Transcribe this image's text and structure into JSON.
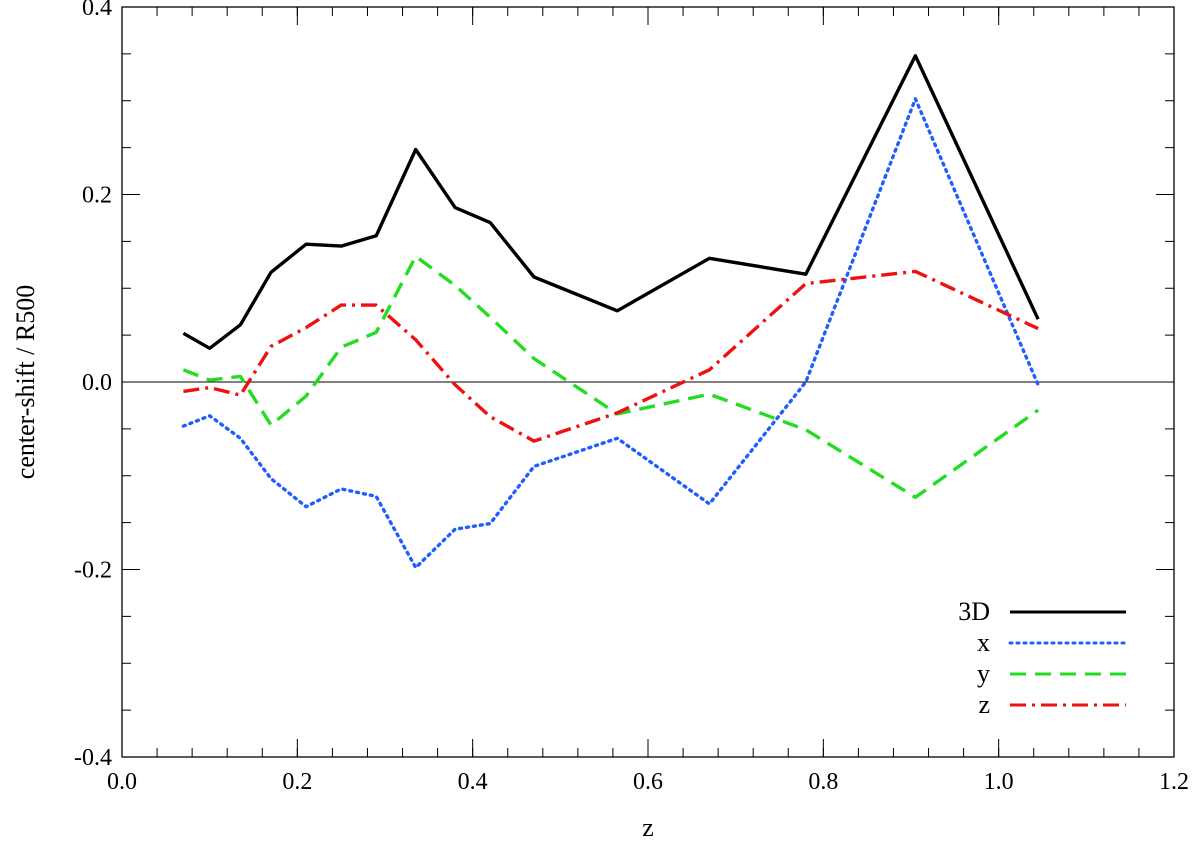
{
  "chart_data": {
    "type": "line",
    "title": "",
    "xlabel": "z",
    "ylabel": "center-shift / R500",
    "xlim": [
      0.0,
      1.2
    ],
    "ylim": [
      -0.4,
      0.4
    ],
    "x_major_ticks": [
      0.0,
      0.2,
      0.4,
      0.6,
      0.8,
      1.0,
      1.2
    ],
    "x_tick_labels": [
      "0.0",
      "0.2",
      "0.4",
      "0.6",
      "0.8",
      "1.0",
      "1.2"
    ],
    "x_minor_step": 0.04,
    "y_major_ticks": [
      -0.4,
      -0.2,
      0.0,
      0.2,
      0.4
    ],
    "y_tick_labels": [
      "-0.4",
      "-0.2",
      "0.0",
      "0.2",
      "0.4"
    ],
    "y_minor_step": 0.05,
    "grid": false,
    "zero_line": true,
    "legend_position": "bottom-right",
    "series": [
      {
        "name": "3D",
        "color": "#000000",
        "dash": "solid",
        "x": [
          0.07,
          0.1,
          0.135,
          0.17,
          0.21,
          0.25,
          0.29,
          0.335,
          0.38,
          0.42,
          0.47,
          0.565,
          0.67,
          0.78,
          0.905,
          1.045
        ],
        "y": [
          0.052,
          0.036,
          0.061,
          0.117,
          0.147,
          0.145,
          0.156,
          0.248,
          0.186,
          0.17,
          0.112,
          0.076,
          0.132,
          0.115,
          0.348,
          0.067
        ]
      },
      {
        "name": "x",
        "color": "#1f5fff",
        "dash": "dotted",
        "x": [
          0.07,
          0.1,
          0.135,
          0.17,
          0.21,
          0.25,
          0.29,
          0.335,
          0.38,
          0.42,
          0.47,
          0.565,
          0.67,
          0.78,
          0.905,
          1.045
        ],
        "y": [
          -0.047,
          -0.036,
          -0.06,
          -0.103,
          -0.133,
          -0.114,
          -0.122,
          -0.198,
          -0.157,
          -0.151,
          -0.09,
          -0.06,
          -0.13,
          0.0,
          0.302,
          -0.003
        ]
      },
      {
        "name": "y",
        "color": "#22dd22",
        "dash": "dashed",
        "x": [
          0.07,
          0.1,
          0.135,
          0.17,
          0.21,
          0.25,
          0.29,
          0.335,
          0.38,
          0.42,
          0.47,
          0.565,
          0.67,
          0.78,
          0.905,
          1.045
        ],
        "y": [
          0.013,
          0.002,
          0.006,
          -0.046,
          -0.015,
          0.037,
          0.053,
          0.134,
          0.103,
          0.069,
          0.025,
          -0.034,
          -0.013,
          -0.051,
          -0.123,
          -0.03
        ]
      },
      {
        "name": "z",
        "color": "#ee1111",
        "dash": "dashdot",
        "x": [
          0.07,
          0.1,
          0.135,
          0.17,
          0.21,
          0.25,
          0.29,
          0.335,
          0.38,
          0.42,
          0.47,
          0.565,
          0.67,
          0.78,
          0.905,
          1.045
        ],
        "y": [
          -0.01,
          -0.006,
          -0.014,
          0.038,
          0.058,
          0.082,
          0.082,
          0.045,
          -0.003,
          -0.037,
          -0.063,
          -0.033,
          0.013,
          0.105,
          0.118,
          0.057
        ]
      }
    ]
  }
}
